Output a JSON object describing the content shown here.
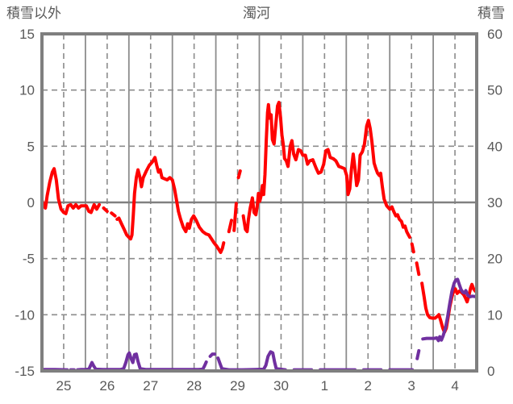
{
  "header": {
    "left_label": "積雪以外",
    "center_title": "濁河",
    "right_label": "積雪"
  },
  "colors": {
    "temperature_series": "#ff0000",
    "snow_series": "#7030a0",
    "frame": "#7f7f7f",
    "gridline": "#8c8c8c",
    "zero_line": "#808080",
    "tick_text": "#595959",
    "background": "#ffffff"
  },
  "chart_data": {
    "type": "line",
    "title": "濁河",
    "left_axis": {
      "label": "積雪以外",
      "min": -15,
      "max": 15,
      "ticks": [
        15,
        10,
        5,
        0,
        -5,
        -10,
        -15
      ]
    },
    "right_axis": {
      "label": "積雪",
      "min": 0,
      "max": 60,
      "ticks": [
        60,
        50,
        40,
        30,
        20,
        10,
        0
      ]
    },
    "x_axis": {
      "labels": [
        "25",
        "26",
        "27",
        "28",
        "29",
        "30",
        "1",
        "2",
        "3",
        "4"
      ],
      "days": 10,
      "solid_gridlines_at_day_boundaries": true,
      "dashed_gridlines_at_middays": true
    },
    "grid": {
      "horizontal_dashed_levels_left": [
        10,
        5,
        -5,
        -10
      ],
      "horizontal_solid_levels_left": [
        0
      ]
    },
    "series": [
      {
        "name": "積雪以外",
        "axis": "left",
        "color": "#ff0000",
        "width": 4,
        "points": [
          [
            0.0,
            0.2
          ],
          [
            0.04,
            -0.3
          ],
          [
            0.08,
            -0.5
          ],
          [
            0.12,
            0.6
          ],
          [
            0.18,
            1.8
          ],
          [
            0.24,
            2.7
          ],
          [
            0.28,
            3.0
          ],
          [
            0.33,
            2.0
          ],
          [
            0.38,
            0.3
          ],
          [
            0.44,
            -0.6
          ],
          [
            0.5,
            -0.9
          ],
          [
            0.55,
            -1.0
          ],
          [
            0.6,
            -0.3
          ],
          [
            0.66,
            -0.2
          ],
          [
            0.72,
            -0.5
          ],
          [
            0.78,
            -0.2
          ],
          [
            0.84,
            -0.5
          ],
          [
            0.9,
            -0.3
          ],
          [
            0.96,
            -0.3
          ],
          [
            1.02,
            -0.3
          ],
          [
            1.08,
            -0.8
          ],
          [
            1.13,
            -0.9
          ],
          [
            1.2,
            -0.2
          ],
          [
            1.26,
            -0.6
          ],
          [
            1.32,
            -0.2
          ],
          null,
          [
            1.42,
            -0.5
          ],
          [
            1.5,
            -0.8
          ],
          null,
          [
            1.6,
            -0.95
          ],
          [
            1.68,
            -1.2
          ],
          null,
          [
            1.73,
            -1.5
          ],
          [
            1.77,
            -1.4
          ],
          [
            1.83,
            -1.9
          ],
          [
            1.89,
            -2.4
          ],
          [
            1.95,
            -2.9
          ],
          [
            2.0,
            -3.1
          ],
          [
            2.04,
            -3.25
          ],
          [
            2.07,
            -2.9
          ],
          [
            2.1,
            -1.2
          ],
          [
            2.13,
            0.8
          ],
          [
            2.17,
            2.2
          ],
          [
            2.21,
            2.9
          ],
          [
            2.25,
            2.3
          ],
          [
            2.29,
            1.4
          ],
          [
            2.33,
            2.2
          ],
          [
            2.4,
            2.8
          ],
          [
            2.47,
            3.3
          ],
          [
            2.54,
            3.6
          ],
          [
            2.6,
            4.0
          ],
          [
            2.64,
            3.3
          ],
          [
            2.68,
            2.7
          ],
          [
            2.72,
            2.9
          ],
          [
            2.76,
            2.2
          ],
          [
            2.82,
            2.1
          ],
          [
            2.88,
            2.0
          ],
          [
            2.94,
            2.2
          ],
          [
            3.0,
            2.0
          ],
          [
            3.05,
            1.2
          ],
          [
            3.09,
            0.3
          ],
          [
            3.14,
            -0.8
          ],
          [
            3.19,
            -1.5
          ],
          [
            3.25,
            -2.2
          ],
          [
            3.31,
            -2.6
          ],
          [
            3.35,
            -1.9
          ],
          [
            3.39,
            -2.3
          ],
          [
            3.44,
            -1.5
          ],
          [
            3.49,
            -1.2
          ],
          [
            3.55,
            -1.6
          ],
          [
            3.62,
            -2.2
          ],
          [
            3.7,
            -2.6
          ],
          [
            3.77,
            -2.8
          ],
          [
            3.84,
            -2.9
          ],
          [
            3.91,
            -3.3
          ],
          [
            3.96,
            -3.6
          ],
          [
            4.02,
            -3.9
          ],
          [
            4.07,
            -4.2
          ],
          [
            4.11,
            -4.45
          ],
          [
            4.15,
            -4.1
          ],
          [
            4.18,
            -3.6
          ],
          null,
          [
            4.3,
            -2.6
          ],
          [
            4.36,
            -1.6
          ],
          null,
          [
            4.42,
            -2.5
          ],
          [
            4.45,
            -1.0
          ],
          [
            4.47,
            -0.1
          ],
          null,
          [
            4.52,
            2.2
          ],
          [
            4.56,
            2.8
          ],
          null,
          [
            4.63,
            -1.2
          ],
          [
            4.68,
            -2.4
          ],
          [
            4.72,
            -2.6
          ],
          [
            4.75,
            -1.5
          ],
          [
            4.79,
            -0.5
          ],
          [
            4.84,
            0.4
          ],
          [
            4.88,
            -0.9
          ],
          [
            4.92,
            -1.1
          ],
          [
            4.95,
            -0.4
          ],
          [
            4.98,
            0.8
          ],
          [
            5.01,
            0.1
          ],
          [
            5.04,
            0.6
          ],
          [
            5.07,
            1.5
          ],
          [
            5.1,
            0.7
          ],
          [
            5.13,
            2.5
          ],
          [
            5.16,
            5.5
          ],
          [
            5.19,
            8.0
          ],
          [
            5.21,
            8.7
          ],
          [
            5.24,
            7.5
          ],
          [
            5.27,
            7.8
          ],
          [
            5.3,
            5.6
          ],
          [
            5.34,
            5.2
          ],
          [
            5.38,
            7.0
          ],
          [
            5.42,
            8.6
          ],
          [
            5.45,
            8.9
          ],
          [
            5.49,
            7.5
          ],
          [
            5.52,
            6.0
          ],
          [
            5.55,
            5.2
          ],
          [
            5.58,
            3.9
          ],
          [
            5.62,
            3.7
          ],
          [
            5.66,
            3.2
          ],
          [
            5.71,
            5.0
          ],
          [
            5.75,
            5.5
          ],
          [
            5.79,
            4.3
          ],
          [
            5.84,
            3.8
          ],
          [
            5.9,
            4.7
          ],
          [
            5.95,
            4.6
          ],
          [
            6.0,
            4.2
          ],
          [
            6.06,
            4.2
          ],
          [
            6.11,
            3.4
          ],
          [
            6.16,
            3.7
          ],
          [
            6.23,
            3.8
          ],
          [
            6.3,
            3.1
          ],
          [
            6.36,
            2.6
          ],
          [
            6.42,
            2.7
          ],
          [
            6.48,
            3.4
          ],
          [
            6.53,
            4.6
          ],
          [
            6.58,
            4.7
          ],
          [
            6.63,
            4.0
          ],
          [
            6.7,
            3.9
          ],
          [
            6.76,
            3.7
          ],
          [
            6.83,
            3.2
          ],
          [
            6.9,
            3.1
          ],
          [
            6.96,
            3.0
          ],
          [
            7.01,
            2.4
          ],
          [
            7.04,
            0.7
          ],
          [
            7.08,
            1.2
          ],
          [
            7.12,
            3.0
          ],
          [
            7.16,
            4.3
          ],
          [
            7.2,
            3.0
          ],
          [
            7.24,
            1.5
          ],
          [
            7.28,
            2.0
          ],
          [
            7.32,
            4.2
          ],
          [
            7.37,
            4.5
          ],
          [
            7.42,
            5.2
          ],
          [
            7.47,
            6.8
          ],
          [
            7.51,
            7.3
          ],
          [
            7.55,
            6.6
          ],
          [
            7.59,
            5.4
          ],
          [
            7.64,
            3.5
          ],
          [
            7.68,
            3.0
          ],
          [
            7.72,
            2.6
          ],
          [
            7.76,
            2.4
          ],
          [
            7.79,
            2.6
          ],
          [
            7.83,
            1.4
          ],
          [
            7.87,
            0.3
          ],
          [
            7.93,
            -0.3
          ],
          [
            8.0,
            -0.6
          ],
          [
            8.05,
            -0.4
          ],
          [
            8.09,
            -0.8
          ],
          [
            8.14,
            -1.2
          ],
          [
            8.18,
            -1.1
          ],
          [
            8.22,
            -1.5
          ],
          [
            8.27,
            -1.7
          ],
          [
            8.31,
            -2.2
          ],
          [
            8.35,
            -2.1
          ],
          [
            8.39,
            -2.6
          ],
          [
            8.43,
            -2.9
          ],
          [
            8.46,
            -3.1
          ],
          null,
          [
            8.51,
            -3.7
          ],
          [
            8.55,
            -4.4
          ],
          null,
          [
            8.62,
            -5.4
          ],
          [
            8.67,
            -6.4
          ],
          null,
          [
            8.74,
            -7.2
          ],
          [
            8.79,
            -8.4
          ],
          [
            8.83,
            -9.4
          ],
          [
            8.87,
            -10.0
          ],
          [
            8.92,
            -10.25
          ],
          [
            8.98,
            -10.3
          ],
          [
            9.04,
            -10.3
          ],
          [
            9.09,
            -10.15
          ],
          [
            9.13,
            -10.0
          ],
          [
            9.17,
            -10.5
          ],
          [
            9.22,
            -11.2
          ],
          [
            9.26,
            -11.55
          ],
          [
            9.3,
            -11.2
          ],
          [
            9.34,
            -10.3
          ],
          [
            9.38,
            -9.3
          ],
          [
            9.43,
            -8.4
          ],
          [
            9.47,
            -7.9
          ],
          [
            9.51,
            -7.7
          ],
          [
            9.55,
            -8.1
          ],
          [
            9.6,
            -7.9
          ],
          [
            9.65,
            -8.0
          ],
          [
            9.7,
            -8.2
          ],
          [
            9.74,
            -8.5
          ],
          [
            9.78,
            -8.85
          ],
          [
            9.82,
            -8.3
          ],
          [
            9.86,
            -7.6
          ],
          [
            9.89,
            -7.3
          ],
          [
            9.93,
            -7.7
          ],
          [
            9.97,
            -7.9
          ]
        ]
      },
      {
        "name": "積雪",
        "axis": "right",
        "color": "#7030a0",
        "width": 4,
        "points": [
          [
            0.0,
            0.25
          ],
          [
            0.3,
            0.25
          ],
          [
            0.58,
            0.2
          ],
          null,
          [
            0.66,
            0.2
          ],
          [
            0.74,
            0.2
          ],
          null,
          [
            0.82,
            0.2
          ],
          [
            0.9,
            0.25
          ],
          [
            1.0,
            0.25
          ],
          [
            1.08,
            0.3
          ],
          [
            1.12,
            1.0
          ],
          [
            1.15,
            1.5
          ],
          [
            1.19,
            0.9
          ],
          [
            1.24,
            0.3
          ],
          [
            1.4,
            0.25
          ],
          [
            1.6,
            0.25
          ],
          [
            1.8,
            0.25
          ],
          [
            1.88,
            0.4
          ],
          [
            1.93,
            1.5
          ],
          [
            1.98,
            2.9
          ],
          [
            2.01,
            3.2
          ],
          [
            2.05,
            2.2
          ],
          [
            2.09,
            1.5
          ],
          [
            2.13,
            2.9
          ],
          [
            2.17,
            3.0
          ],
          [
            2.21,
            1.7
          ],
          [
            2.26,
            0.4
          ],
          [
            2.4,
            0.25
          ],
          [
            2.7,
            0.25
          ],
          [
            3.0,
            0.25
          ],
          [
            3.3,
            0.25
          ],
          [
            3.6,
            0.25
          ],
          [
            3.7,
            0.3
          ],
          [
            3.74,
            0.9
          ],
          [
            3.78,
            1.6
          ],
          null,
          [
            3.87,
            2.6
          ],
          [
            3.92,
            3.0
          ],
          [
            3.97,
            3.0
          ],
          null,
          [
            4.05,
            2.3
          ],
          [
            4.09,
            1.4
          ],
          [
            4.14,
            0.4
          ],
          [
            4.3,
            0.2
          ],
          [
            4.6,
            0.2
          ],
          [
            4.9,
            0.25
          ],
          [
            5.1,
            0.3
          ],
          [
            5.15,
            1.0
          ],
          [
            5.2,
            2.6
          ],
          [
            5.26,
            3.4
          ],
          [
            5.31,
            3.2
          ],
          [
            5.35,
            1.6
          ],
          [
            5.39,
            0.4
          ],
          [
            5.6,
            0.2
          ],
          null,
          [
            5.8,
            0.2
          ],
          [
            6.2,
            0.2
          ],
          null,
          [
            6.4,
            0.2
          ],
          [
            6.8,
            0.2
          ],
          [
            7.2,
            0.2
          ],
          null,
          [
            7.4,
            0.2
          ],
          [
            7.8,
            0.2
          ],
          null,
          [
            8.0,
            0.2
          ],
          [
            8.3,
            0.2
          ],
          [
            8.52,
            0.2
          ],
          null,
          [
            8.58,
            0.8
          ],
          null,
          [
            8.63,
            2.2
          ],
          [
            8.67,
            3.6
          ],
          null,
          [
            8.76,
            5.7
          ],
          [
            8.85,
            5.8
          ],
          [
            8.95,
            5.8
          ],
          [
            9.03,
            5.8
          ],
          [
            9.08,
            5.9
          ],
          [
            9.12,
            5.4
          ],
          [
            9.15,
            6.1
          ],
          [
            9.19,
            5.5
          ],
          [
            9.23,
            6.3
          ],
          [
            9.28,
            7.6
          ],
          [
            9.33,
            9.6
          ],
          [
            9.38,
            12.0
          ],
          [
            9.43,
            14.2
          ],
          [
            9.48,
            15.6
          ],
          [
            9.52,
            16.2
          ],
          [
            9.56,
            16.3
          ],
          [
            9.6,
            15.4
          ],
          [
            9.64,
            14.5
          ],
          [
            9.68,
            14.0
          ],
          [
            9.72,
            13.9
          ],
          [
            9.75,
            14.3
          ],
          [
            9.79,
            13.5
          ],
          [
            9.84,
            13.2
          ],
          [
            9.9,
            13.3
          ],
          [
            10.0,
            13.2
          ]
        ]
      }
    ]
  }
}
